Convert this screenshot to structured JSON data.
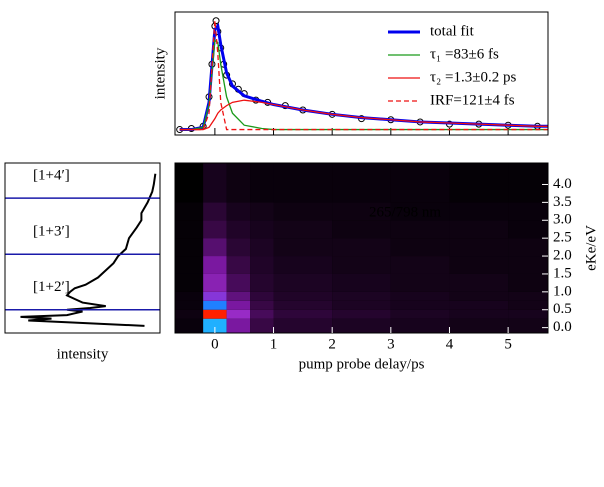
{
  "chart_data": [
    {
      "type": "line",
      "ylabel": "intensity",
      "legend": "upper right",
      "xlim": [
        -0.68,
        5.68
      ],
      "ylim": [
        -0.05,
        1.08
      ],
      "xticks": [
        0,
        1,
        2,
        3,
        4,
        5
      ],
      "x": [
        -0.6,
        -0.4,
        -0.2,
        -0.1,
        0,
        0.05,
        0.1,
        0.2,
        0.3,
        0.5,
        0.8,
        1.0,
        1.5,
        2,
        2.5,
        3,
        3.5,
        4,
        4.5,
        5,
        5.5,
        5.68
      ],
      "series": [
        {
          "name": "total fit",
          "color": "#0000ee",
          "width": 3,
          "dash": false,
          "values": [
            0,
            0,
            0.02,
            0.25,
            0.92,
            0.95,
            0.78,
            0.52,
            0.4,
            0.31,
            0.26,
            0.23,
            0.18,
            0.14,
            0.11,
            0.09,
            0.07,
            0.06,
            0.05,
            0.04,
            0.03,
            0.03
          ]
        },
        {
          "name": "τ₁ =83±6 fs",
          "color": "#1a9a1a",
          "width": 1.3,
          "dash": false,
          "values": [
            0,
            0,
            0.02,
            0.23,
            0.82,
            0.8,
            0.6,
            0.3,
            0.15,
            0.04,
            0.01,
            0,
            0,
            0,
            0,
            0,
            0,
            0,
            0,
            0,
            0,
            0
          ]
        },
        {
          "name": "τ₂ =1.3±0.2 ps",
          "color": "#ee1111",
          "width": 1.3,
          "dash": false,
          "values": [
            0,
            0,
            0,
            0.02,
            0.1,
            0.15,
            0.18,
            0.22,
            0.25,
            0.27,
            0.25,
            0.23,
            0.18,
            0.14,
            0.11,
            0.09,
            0.07,
            0.06,
            0.05,
            0.04,
            0.03,
            0.03
          ]
        },
        {
          "name": "IRF=121±4 fs",
          "color": "#ee1111",
          "width": 1.3,
          "dash": true,
          "values": [
            0,
            0,
            0,
            0.15,
            1.0,
            0.7,
            0.25,
            0,
            0,
            0,
            0,
            0,
            0,
            0,
            0,
            0,
            0,
            0,
            0,
            0,
            0,
            0
          ]
        }
      ],
      "points": {
        "color": "#000000",
        "x": [
          -0.6,
          -0.4,
          -0.2,
          -0.1,
          -0.05,
          0,
          0.02,
          0.05,
          0.1,
          0.15,
          0.2,
          0.3,
          0.4,
          0.5,
          0.7,
          0.9,
          1.2,
          1.5,
          2,
          2.5,
          3,
          3.5,
          4,
          4.5,
          5,
          5.5
        ],
        "y": [
          0,
          0.01,
          0.03,
          0.3,
          0.6,
          0.95,
          1.0,
          0.9,
          0.75,
          0.6,
          0.5,
          0.42,
          0.37,
          0.33,
          0.27,
          0.25,
          0.22,
          0.18,
          0.14,
          0.1,
          0.09,
          0.07,
          0.05,
          0.05,
          0.04,
          0.03
        ]
      }
    },
    {
      "type": "line",
      "orientation": "horizontal",
      "x_reversed": true,
      "xlabel": "intensity",
      "xlim": [
        0,
        1
      ],
      "ylim": [
        -0.15,
        4.6
      ],
      "color": "#000000",
      "y": [
        0.05,
        0.15,
        0.2,
        0.25,
        0.3,
        0.35,
        0.4,
        0.45,
        0.5,
        0.55,
        0.6,
        0.7,
        0.8,
        0.9,
        1.0,
        1.1,
        1.2,
        1.4,
        1.6,
        1.8,
        2.0,
        2.2,
        2.5,
        2.8,
        3.0,
        3.2,
        3.5,
        3.8,
        4.0,
        4.3
      ],
      "values": [
        0.1,
        0.6,
        0.85,
        0.7,
        0.9,
        0.6,
        0.55,
        0.5,
        0.6,
        0.45,
        0.35,
        0.5,
        0.55,
        0.6,
        0.58,
        0.55,
        0.48,
        0.4,
        0.35,
        0.3,
        0.27,
        0.22,
        0.2,
        0.15,
        0.12,
        0.12,
        0.08,
        0.05,
        0.04,
        0.03
      ],
      "levels": [
        {
          "label": "[1+4′]",
          "value": 3.62
        },
        {
          "label": "[1+3′]",
          "value": 2.05
        },
        {
          "label": "[1+2′]",
          "value": 0.5
        }
      ],
      "level_color": "#1a1aaa"
    },
    {
      "type": "heatmap",
      "xlabel": "pump probe delay/ps",
      "ylabel": "eKe/eV",
      "annotation": "265/798 nm",
      "xlim": [
        -0.68,
        5.68
      ],
      "ylim": [
        -0.15,
        4.6
      ],
      "xticks": [
        0,
        1,
        2,
        3,
        4,
        5
      ],
      "yticks": [
        {
          "value": 0,
          "label": "0.0"
        },
        {
          "value": 0.5,
          "label": "0.5"
        },
        {
          "value": 1,
          "label": "1.0"
        },
        {
          "value": 1.5,
          "label": "1.5"
        },
        {
          "value": 2,
          "label": "2.0"
        },
        {
          "value": 2.5,
          "label": "2.5"
        },
        {
          "value": 3,
          "label": "3.0"
        },
        {
          "value": 3.5,
          "label": "3.5"
        },
        {
          "value": 4,
          "label": "4.0"
        }
      ],
      "xbins": [
        -0.68,
        -0.2,
        0.2,
        0.6,
        1.0,
        2.0,
        3.0,
        4.0,
        5.0,
        5.68
      ],
      "ybins": [
        -0.15,
        0.25,
        0.5,
        0.75,
        1.0,
        1.5,
        2.0,
        2.5,
        3.0,
        3.5,
        4.6
      ],
      "zlim": [
        0,
        100
      ],
      "colormap": [
        "#000000",
        "#3a0848",
        "#7a18a0",
        "#a030d0",
        "#2050ff",
        "#20c8ff",
        "#40ff80",
        "#ffff00",
        "#ff2000"
      ],
      "z": [
        [
          2,
          60,
          25,
          12,
          8,
          6,
          5,
          4,
          4
        ],
        [
          3,
          100,
          35,
          15,
          10,
          8,
          6,
          5,
          5
        ],
        [
          2,
          55,
          25,
          12,
          8,
          6,
          5,
          5,
          4
        ],
        [
          2,
          40,
          20,
          10,
          7,
          6,
          5,
          4,
          4
        ],
        [
          1,
          30,
          15,
          8,
          6,
          5,
          4,
          4,
          3
        ],
        [
          1,
          25,
          12,
          7,
          5,
          4,
          4,
          3,
          3
        ],
        [
          1,
          18,
          9,
          6,
          4,
          4,
          3,
          3,
          3
        ],
        [
          1,
          12,
          7,
          5,
          4,
          3,
          3,
          3,
          2
        ],
        [
          1,
          9,
          5,
          4,
          3,
          3,
          2,
          2,
          2
        ],
        [
          0,
          5,
          3,
          2,
          2,
          2,
          2,
          1,
          1
        ]
      ]
    }
  ]
}
